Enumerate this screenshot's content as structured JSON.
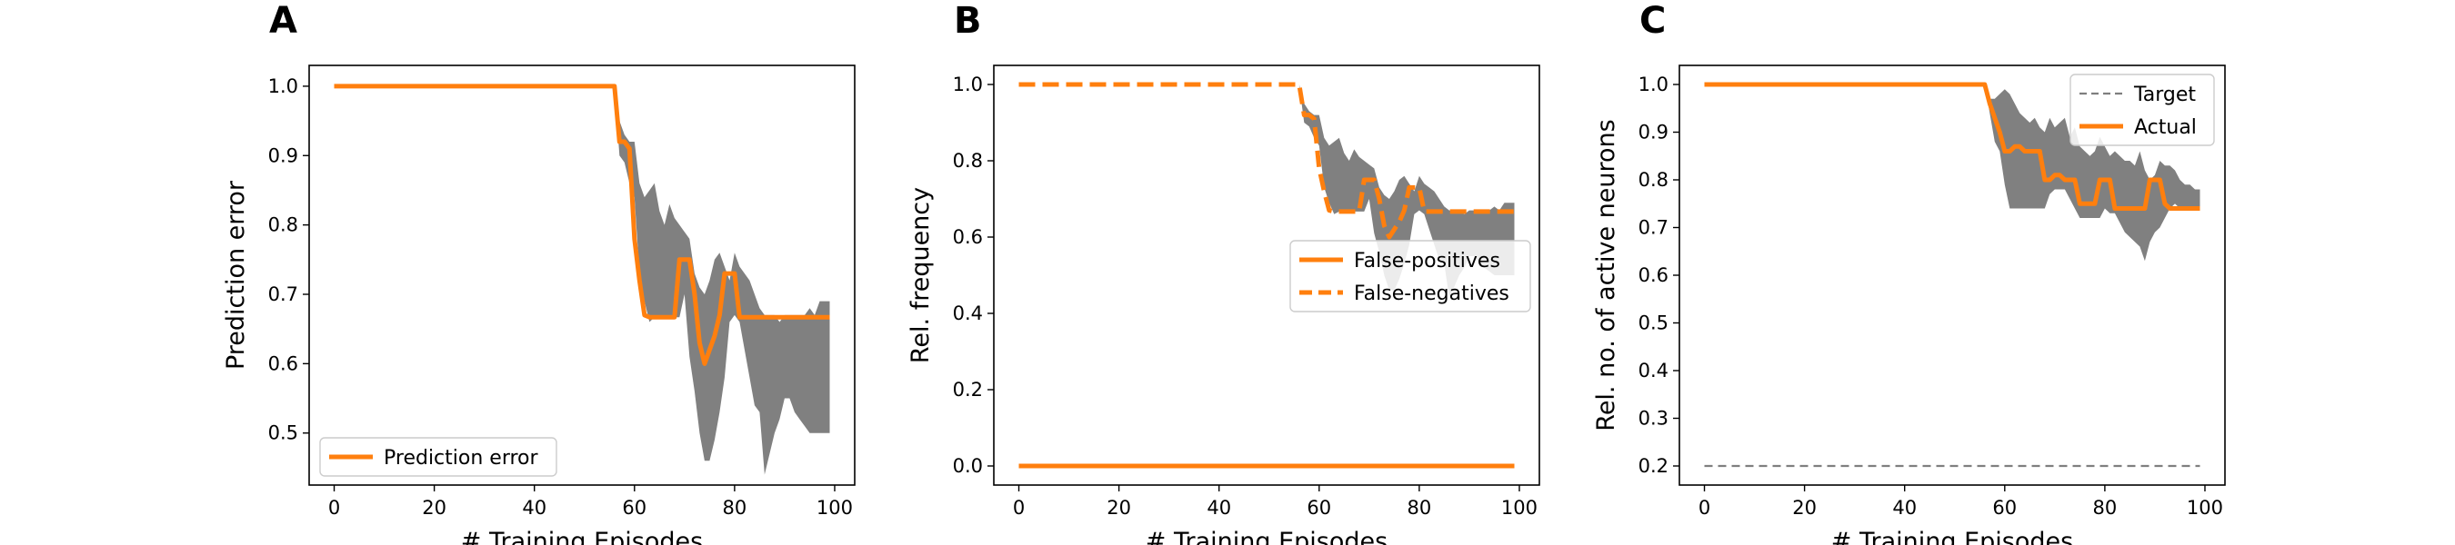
{
  "figure": {
    "background": "#ffffff"
  },
  "colors": {
    "orange": "#ff7f0e",
    "band": "#808080",
    "target": "#7f7f7f"
  },
  "chart_data": [
    {
      "panel": "A",
      "type": "line",
      "xlabel": "# Training Episodes",
      "ylabel": "Prediction error",
      "xlim": [
        -5,
        104
      ],
      "ylim": [
        0.425,
        1.03
      ],
      "xticks": [
        0,
        20,
        40,
        60,
        80,
        100
      ],
      "xtick_labels": [
        "0",
        "20",
        "40",
        "60",
        "80",
        "100"
      ],
      "yticks": [
        0.5,
        0.6,
        0.7,
        0.8,
        0.9,
        1.0
      ],
      "ytick_labels": [
        "0.5",
        "0.6",
        "0.7",
        "0.8",
        "0.9",
        "1.0"
      ],
      "grid": false,
      "legend_position": "lower-left",
      "series": [
        {
          "name": "Prediction error",
          "color": "#ff7f0e",
          "style": "solid",
          "x": [
            0,
            56,
            57,
            58,
            59,
            60,
            61,
            62,
            63,
            64,
            65,
            66,
            67,
            68,
            69,
            70,
            71,
            72,
            73,
            74,
            75,
            76,
            77,
            78,
            79,
            80,
            81,
            82,
            83,
            84,
            85,
            86,
            99
          ],
          "y": [
            1.0,
            1.0,
            0.92,
            0.92,
            0.91,
            0.78,
            0.72,
            0.67,
            0.667,
            0.667,
            0.667,
            0.667,
            0.667,
            0.667,
            0.75,
            0.75,
            0.75,
            0.7,
            0.63,
            0.6,
            0.62,
            0.64,
            0.67,
            0.73,
            0.73,
            0.73,
            0.667,
            0.667,
            0.667,
            0.667,
            0.667,
            0.667,
            0.667
          ]
        }
      ],
      "band": {
        "color": "#808080",
        "x": [
          56,
          57,
          58,
          59,
          60,
          61,
          62,
          63,
          64,
          65,
          66,
          67,
          68,
          69,
          70,
          71,
          72,
          73,
          74,
          75,
          76,
          77,
          78,
          79,
          80,
          81,
          82,
          83,
          84,
          85,
          86,
          87,
          88,
          89,
          90,
          91,
          92,
          93,
          94,
          95,
          96,
          97,
          98,
          99
        ],
        "upper": [
          1.0,
          0.95,
          0.93,
          0.92,
          0.92,
          0.86,
          0.84,
          0.85,
          0.86,
          0.82,
          0.8,
          0.83,
          0.81,
          0.8,
          0.79,
          0.78,
          0.73,
          0.71,
          0.7,
          0.72,
          0.75,
          0.76,
          0.74,
          0.72,
          0.76,
          0.74,
          0.73,
          0.72,
          0.7,
          0.68,
          0.67,
          0.67,
          0.67,
          0.66,
          0.67,
          0.67,
          0.67,
          0.67,
          0.67,
          0.68,
          0.67,
          0.69,
          0.69,
          0.69
        ],
        "lower": [
          1.0,
          0.9,
          0.89,
          0.86,
          0.84,
          0.73,
          0.69,
          0.66,
          0.667,
          0.667,
          0.667,
          0.667,
          0.667,
          0.667,
          0.7,
          0.61,
          0.56,
          0.5,
          0.46,
          0.46,
          0.49,
          0.53,
          0.58,
          0.66,
          0.67,
          0.66,
          0.62,
          0.58,
          0.54,
          0.53,
          0.44,
          0.47,
          0.5,
          0.52,
          0.55,
          0.55,
          0.53,
          0.52,
          0.51,
          0.5,
          0.5,
          0.5,
          0.5,
          0.5
        ]
      }
    },
    {
      "panel": "B",
      "type": "line",
      "xlabel": "# Training Episodes",
      "ylabel": "Rel. frequency",
      "xlim": [
        -5,
        104
      ],
      "ylim": [
        -0.05,
        1.05
      ],
      "xticks": [
        0,
        20,
        40,
        60,
        80,
        100
      ],
      "xtick_labels": [
        "0",
        "20",
        "40",
        "60",
        "80",
        "100"
      ],
      "yticks": [
        0.0,
        0.2,
        0.4,
        0.6,
        0.8,
        1.0
      ],
      "ytick_labels": [
        "0.0",
        "0.2",
        "0.4",
        "0.6",
        "0.8",
        "1.0"
      ],
      "grid": false,
      "legend_position": "center-right",
      "series": [
        {
          "name": "False-positives",
          "color": "#ff7f0e",
          "style": "solid",
          "x": [
            0,
            99
          ],
          "y": [
            0.0,
            0.0
          ]
        },
        {
          "name": "False-negatives",
          "color": "#ff7f0e",
          "style": "dashed",
          "x": [
            0,
            56,
            57,
            58,
            59,
            60,
            61,
            62,
            63,
            64,
            65,
            66,
            67,
            68,
            69,
            70,
            71,
            72,
            73,
            74,
            75,
            76,
            77,
            78,
            79,
            80,
            81,
            82,
            83,
            84,
            85,
            86,
            99
          ],
          "y": [
            1.0,
            1.0,
            0.92,
            0.92,
            0.91,
            0.78,
            0.72,
            0.67,
            0.667,
            0.667,
            0.667,
            0.667,
            0.667,
            0.667,
            0.75,
            0.75,
            0.75,
            0.7,
            0.63,
            0.6,
            0.62,
            0.64,
            0.67,
            0.73,
            0.73,
            0.73,
            0.667,
            0.667,
            0.667,
            0.667,
            0.667,
            0.667,
            0.667
          ]
        }
      ],
      "band": {
        "color": "#808080",
        "x": [
          56,
          57,
          58,
          59,
          60,
          61,
          62,
          63,
          64,
          65,
          66,
          67,
          68,
          69,
          70,
          71,
          72,
          73,
          74,
          75,
          76,
          77,
          78,
          79,
          80,
          81,
          82,
          83,
          84,
          85,
          86,
          87,
          88,
          89,
          90,
          91,
          92,
          93,
          94,
          95,
          96,
          97,
          98,
          99
        ],
        "upper": [
          1.0,
          0.95,
          0.93,
          0.92,
          0.92,
          0.86,
          0.84,
          0.85,
          0.86,
          0.82,
          0.8,
          0.83,
          0.81,
          0.8,
          0.79,
          0.78,
          0.73,
          0.71,
          0.7,
          0.72,
          0.75,
          0.76,
          0.74,
          0.72,
          0.76,
          0.74,
          0.73,
          0.72,
          0.7,
          0.68,
          0.67,
          0.67,
          0.67,
          0.66,
          0.67,
          0.67,
          0.67,
          0.67,
          0.67,
          0.68,
          0.67,
          0.69,
          0.69,
          0.69
        ],
        "lower": [
          1.0,
          0.9,
          0.89,
          0.86,
          0.84,
          0.73,
          0.69,
          0.66,
          0.667,
          0.667,
          0.667,
          0.667,
          0.667,
          0.667,
          0.7,
          0.61,
          0.56,
          0.5,
          0.46,
          0.46,
          0.49,
          0.53,
          0.58,
          0.66,
          0.67,
          0.66,
          0.62,
          0.58,
          0.54,
          0.53,
          0.44,
          0.47,
          0.5,
          0.52,
          0.55,
          0.55,
          0.53,
          0.52,
          0.51,
          0.5,
          0.5,
          0.5,
          0.5,
          0.5
        ]
      }
    },
    {
      "panel": "C",
      "type": "line",
      "xlabel": "# Training Episodes",
      "ylabel": "Rel. no. of active neurons",
      "xlim": [
        -5,
        104
      ],
      "ylim": [
        0.16,
        1.04
      ],
      "xticks": [
        0,
        20,
        40,
        60,
        80,
        100
      ],
      "xtick_labels": [
        "0",
        "20",
        "40",
        "60",
        "80",
        "100"
      ],
      "yticks": [
        0.2,
        0.3,
        0.4,
        0.5,
        0.6,
        0.7,
        0.8,
        0.9,
        1.0
      ],
      "ytick_labels": [
        "0.2",
        "0.3",
        "0.4",
        "0.5",
        "0.6",
        "0.7",
        "0.8",
        "0.9",
        "1.0"
      ],
      "grid": false,
      "legend_position": "upper-right",
      "series": [
        {
          "name": "Target",
          "color": "#7f7f7f",
          "style": "dashed-thin",
          "x": [
            0,
            99
          ],
          "y": [
            0.2,
            0.2
          ]
        },
        {
          "name": "Actual",
          "color": "#ff7f0e",
          "style": "solid",
          "x": [
            0,
            56,
            57,
            58,
            59,
            60,
            61,
            62,
            63,
            64,
            65,
            66,
            67,
            68,
            69,
            70,
            71,
            72,
            73,
            74,
            75,
            76,
            77,
            78,
            79,
            80,
            81,
            82,
            83,
            84,
            85,
            86,
            87,
            88,
            89,
            90,
            91,
            92,
            93,
            94,
            95,
            96,
            97,
            98,
            99
          ],
          "y": [
            1.0,
            1.0,
            0.96,
            0.93,
            0.9,
            0.86,
            0.86,
            0.87,
            0.87,
            0.86,
            0.86,
            0.86,
            0.86,
            0.8,
            0.8,
            0.81,
            0.81,
            0.8,
            0.8,
            0.8,
            0.75,
            0.75,
            0.75,
            0.75,
            0.8,
            0.8,
            0.8,
            0.74,
            0.74,
            0.74,
            0.74,
            0.74,
            0.74,
            0.74,
            0.8,
            0.8,
            0.8,
            0.75,
            0.74,
            0.74,
            0.74,
            0.74,
            0.74,
            0.74,
            0.74
          ]
        }
      ],
      "band": {
        "color": "#808080",
        "x": [
          56,
          57,
          58,
          59,
          60,
          61,
          62,
          63,
          64,
          65,
          66,
          67,
          68,
          69,
          70,
          71,
          72,
          73,
          74,
          75,
          76,
          77,
          78,
          79,
          80,
          81,
          82,
          83,
          84,
          85,
          86,
          87,
          88,
          89,
          90,
          91,
          92,
          93,
          94,
          95,
          96,
          97,
          98,
          99
        ],
        "upper": [
          1.0,
          0.97,
          0.97,
          0.98,
          0.99,
          0.98,
          0.96,
          0.94,
          0.93,
          0.92,
          0.93,
          0.91,
          0.9,
          0.93,
          0.91,
          0.92,
          0.93,
          0.89,
          0.91,
          0.87,
          0.86,
          0.85,
          0.86,
          0.89,
          0.87,
          0.85,
          0.86,
          0.85,
          0.84,
          0.84,
          0.83,
          0.86,
          0.82,
          0.8,
          0.81,
          0.84,
          0.83,
          0.83,
          0.82,
          0.8,
          0.79,
          0.79,
          0.78,
          0.78
        ],
        "lower": [
          1.0,
          0.94,
          0.88,
          0.86,
          0.79,
          0.74,
          0.74,
          0.74,
          0.74,
          0.74,
          0.74,
          0.74,
          0.74,
          0.77,
          0.78,
          0.78,
          0.78,
          0.76,
          0.74,
          0.72,
          0.72,
          0.72,
          0.72,
          0.72,
          0.74,
          0.73,
          0.73,
          0.71,
          0.69,
          0.68,
          0.67,
          0.66,
          0.63,
          0.67,
          0.69,
          0.7,
          0.72,
          0.74,
          0.75,
          0.74,
          0.74,
          0.74,
          0.74,
          0.74
        ]
      }
    }
  ]
}
